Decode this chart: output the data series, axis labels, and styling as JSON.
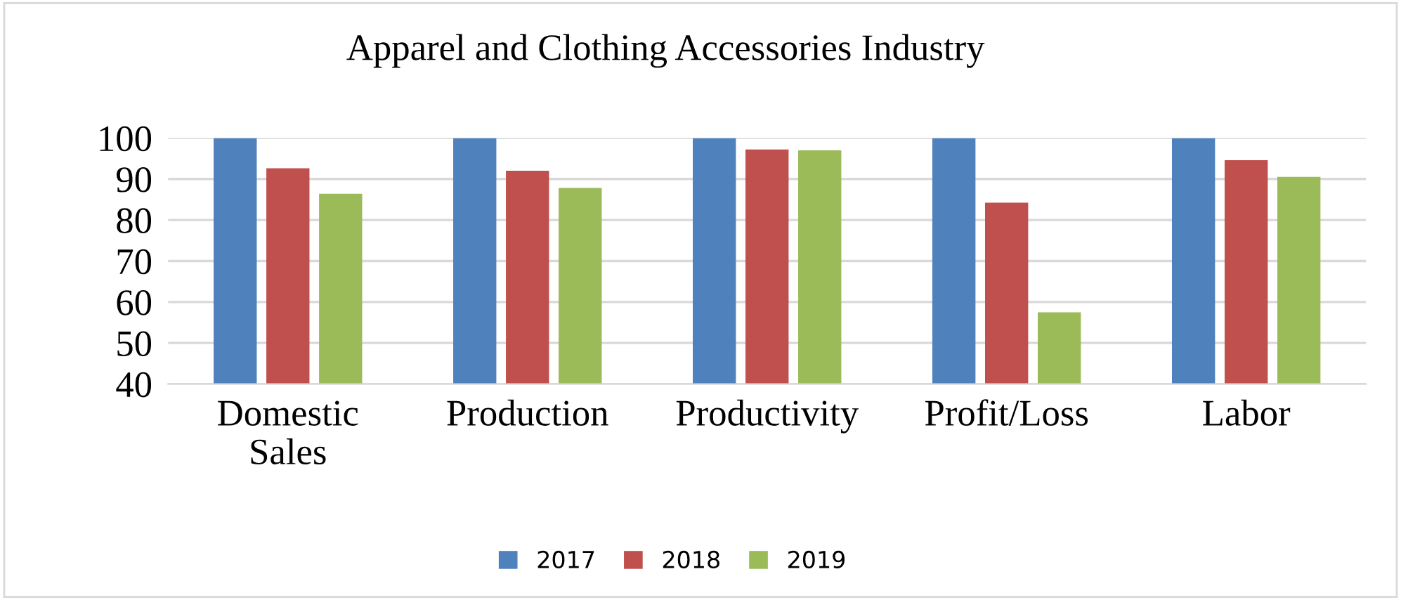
{
  "chart_data": {
    "type": "bar",
    "title": "Apparel and Clothing Accessories Industry",
    "categories": [
      "Domestic\nSales",
      "Production",
      "Productivity",
      "Profit/Loss",
      "Labor"
    ],
    "series": [
      {
        "name": "2017",
        "color": "#4f81bd",
        "values": [
          100,
          100,
          100,
          100,
          100
        ]
      },
      {
        "name": "2018",
        "color": "#c0504d",
        "values": [
          92.6,
          92.0,
          97.2,
          84.2,
          94.6
        ]
      },
      {
        "name": "2019",
        "color": "#9bbb59",
        "values": [
          86.4,
          87.8,
          97.0,
          57.5,
          90.5
        ]
      }
    ],
    "ylim": [
      40,
      100
    ],
    "yticks": [
      40,
      50,
      60,
      70,
      80,
      90,
      100
    ],
    "grid": "y",
    "legend": "bottom"
  }
}
